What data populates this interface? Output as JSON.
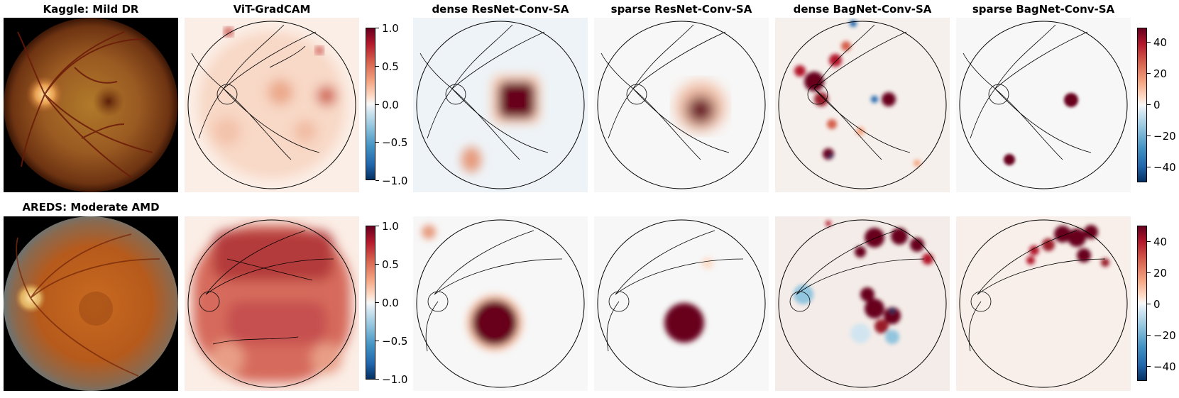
{
  "row1": {
    "titles": [
      "Kaggle: Mild DR",
      "ViT-GradCAM",
      "dense ResNet-Conv-SA",
      "sparse ResNet-Conv-SA",
      "dense BagNet-Conv-SA",
      "sparse BagNet-Conv-SA"
    ],
    "colorbar_left_ticks": [
      "1.0",
      "0.5",
      "0.0",
      "−0.5",
      "−1.0"
    ],
    "colorbar_right_ticks": [
      "40",
      "20",
      "0",
      "−20",
      "−40"
    ]
  },
  "row2": {
    "titles": [
      "AREDS: Moderate AMD"
    ],
    "colorbar_left_ticks": [
      "1.0",
      "0.5",
      "0.0",
      "−0.5",
      "−1.0"
    ],
    "colorbar_right_ticks": [
      "40",
      "20",
      "0",
      "−20",
      "−40"
    ]
  },
  "colors": {
    "cmap_low": "#053061",
    "cmap_mid": "#f7f7f7",
    "cmap_high": "#67001f"
  }
}
